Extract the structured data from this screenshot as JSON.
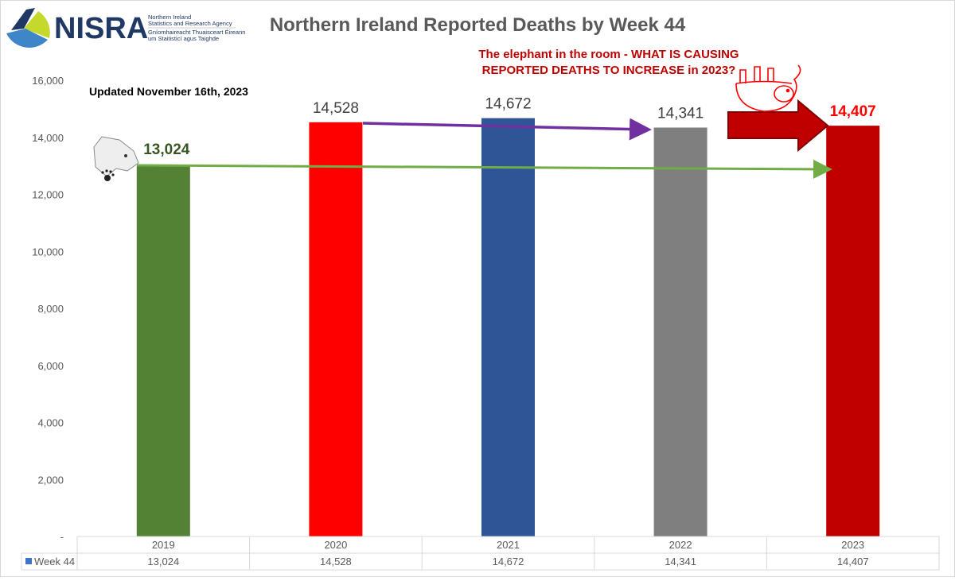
{
  "logo": {
    "name": "NISRA",
    "line1": "Northern Ireland",
    "line2": "Statistics and Research Agency",
    "line3": "Gníomhaireacht Thuaisceart Éireann",
    "line4": "um Staitisticí agus Taighde"
  },
  "annotations": {
    "updated": "Updated November 16th, 2023",
    "question_line1": "The elephant in the room - WHAT IS CAUSING",
    "question_line2": "REPORTED DEATHS TO INCREASE in 2023?"
  },
  "chart_data": {
    "type": "bar",
    "title": "Northern Ireland Reported Deaths by Week 44",
    "xlabel": "",
    "ylabel": "",
    "ylim": [
      0,
      16000
    ],
    "yticks": [
      0,
      2000,
      4000,
      6000,
      8000,
      10000,
      12000,
      14000,
      16000
    ],
    "ytick_labels": [
      "-",
      "2,000",
      "4,000",
      "6,000",
      "8,000",
      "10,000",
      "12,000",
      "14,000",
      "16,000"
    ],
    "categories": [
      "2019",
      "2020",
      "2021",
      "2022",
      "2023"
    ],
    "series": [
      {
        "name": "Week 44",
        "values": [
          13024,
          14528,
          14672,
          14341,
          14407
        ]
      }
    ],
    "data_labels": [
      "13,024",
      "14,528",
      "14,672",
      "14,341",
      "14,407"
    ],
    "bar_colors": [
      "#548235",
      "#ff0000",
      "#2f5597",
      "#7f7f7f",
      "#c00000"
    ],
    "label_colors": [
      "#375623",
      "#404040",
      "#404040",
      "#404040",
      "#ff0000"
    ],
    "legend_color": "#4472c4",
    "grid": false,
    "legend": "data-table"
  }
}
